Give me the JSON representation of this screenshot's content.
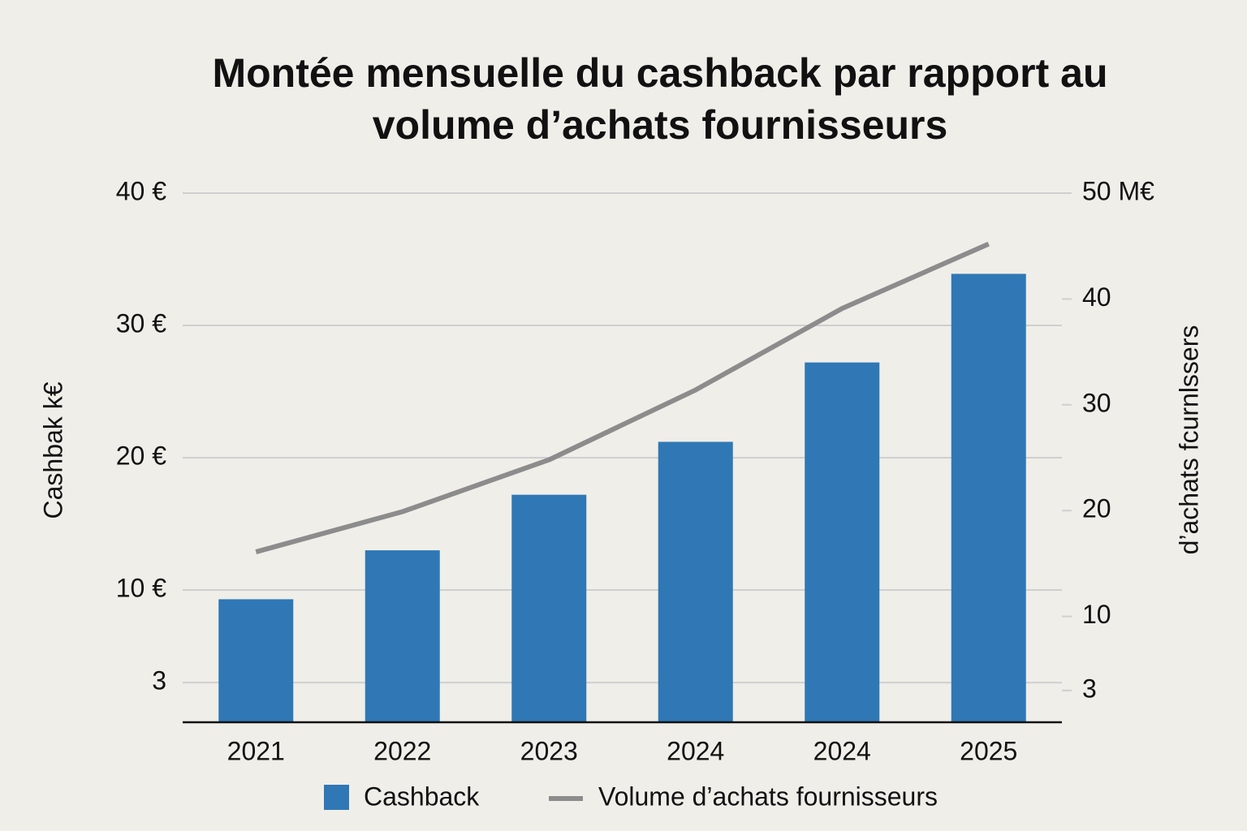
{
  "chart_data": {
    "type": "bar-line",
    "title": "Montée mensuelle du cashback par rapport au volume d’achats fournisseurs",
    "y_label": "Cashbak k€",
    "y2_label": "d’achats fcurnlssers",
    "categories": [
      "2021",
      "2022",
      "2023",
      "2024",
      "2024",
      "2025"
    ],
    "series": [
      {
        "name": "Cashback",
        "type": "bar",
        "color": "#2f78b5",
        "values": [
          9.3,
          13.0,
          17.2,
          21.2,
          27.2,
          33.9
        ]
      },
      {
        "name": "Volume d’achats fournisseurs",
        "type": "line",
        "axis": "y2",
        "color": "#8c8c8c",
        "values": [
          16.1,
          19.9,
          24.8,
          31.4,
          39.1,
          45.2
        ]
      }
    ],
    "ylim": [
      0,
      40
    ],
    "yticks": [
      {
        "value": 40,
        "label": "40 €"
      },
      {
        "value": 30,
        "label": "30 €"
      },
      {
        "value": 20,
        "label": "20 €"
      },
      {
        "value": 10,
        "label": "10 €"
      },
      3
    ],
    "y2lim": [
      0,
      50
    ],
    "y2ticks": [
      {
        "value": 50,
        "label": "50 M€"
      },
      40,
      30,
      20,
      10,
      3
    ],
    "grid": true
  }
}
